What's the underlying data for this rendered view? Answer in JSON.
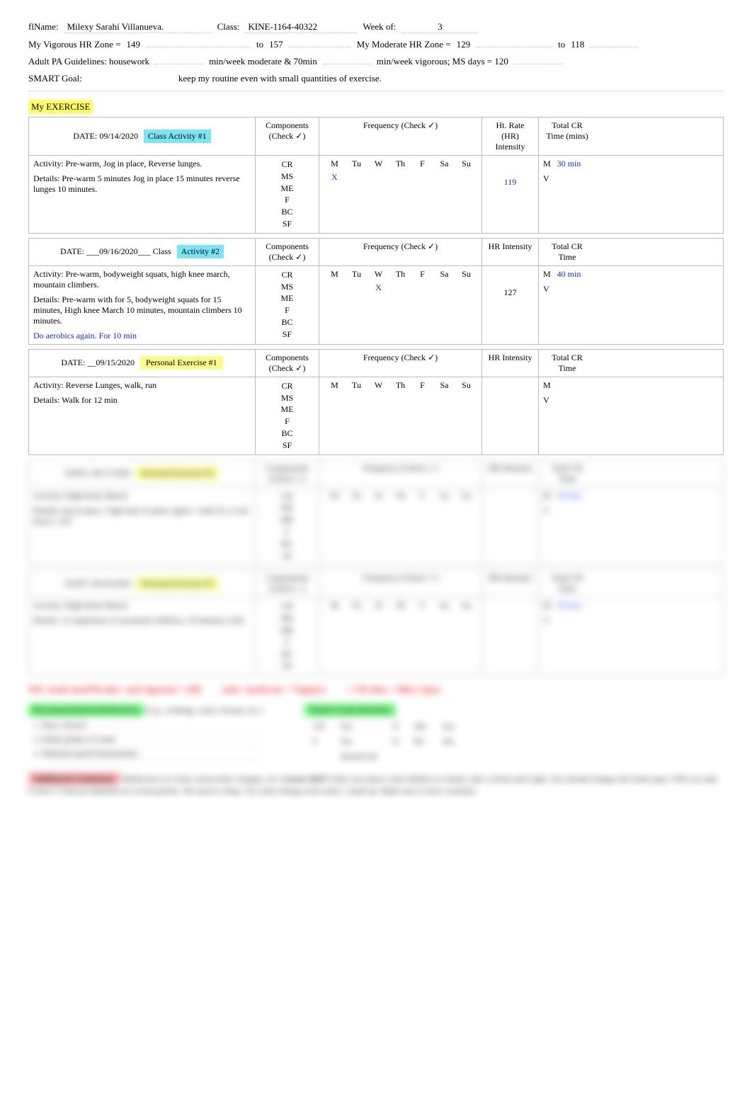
{
  "header": {
    "name_label": "flName:",
    "name_value": "Milexy Sarahí Villanueva.",
    "class_label": "Class:",
    "class_value": "KINE-1164-40322",
    "week_label": "Week of:",
    "week_value": "3",
    "vig_label": "My Vigorous  HR Zone =",
    "vig_lo": "149",
    "to": "to",
    "vig_hi": "157",
    "mod_label": "My Moderate  HR Zone =",
    "mod_lo": "129",
    "mod_hi": "118",
    "pa_label": "Adult PA Guidelines: housework",
    "pa_mid": "min/week moderate & 70min",
    "pa_end": "min/week vigorous; MS days = 120",
    "goal_label": "SMART Goal:",
    "goal_value": "keep my routine even with small quantities of exercise."
  },
  "section_title": "My EXERCISE",
  "col_headers": {
    "components": "Components (Check  ✓)",
    "frequency": "Frequency (Check  ✓)",
    "hr1": "Ht. Rate (HR) Intensity",
    "hr2": "HR Intensity",
    "crtime1": "Total CR Time (mins)",
    "crtime2": "Total CR Time"
  },
  "days": [
    "M",
    "Tu",
    "W",
    "Th",
    "F",
    "Sa",
    "Su"
  ],
  "components": [
    "CR",
    "MS",
    "ME",
    "F",
    "BC",
    "SF"
  ],
  "entries": [
    {
      "date_label": "DATE:  09/14/2020",
      "tag": "Class Activity   #1",
      "tag_style": "hl-cyan",
      "activity_label": "Activity:",
      "activity": "Pre-warm, Jog in place, Reverse lunges.",
      "details_label": "Details:",
      "details": "Pre-warm 5 minutes Jog in place 15 minutes reverse lunges 10 minutes.",
      "freq_mark_col": 0,
      "hr": "119",
      "hr_color": "blue",
      "m_val": "30 min",
      "v_val": "",
      "note": ""
    },
    {
      "date_label": "DATE: ___09/16/2020___ Class",
      "tag": "Activity  #2",
      "tag_style": "hl-cyan",
      "activity_label": "Activity:",
      "activity": "Pre-warm, bodyweight squats, high knee march, mountain climbers.",
      "details_label": "Details:",
      "details": "Pre-warm with for 5, bodyweight squats for 15 minutes, High knee March 10 minutes, mountain climbers 10 minutes.",
      "freq_mark_col": 2,
      "hr": "127",
      "hr_color": "black",
      "m_val": "40 min",
      "v_val": "",
      "note": "Do aerobics again. For 10 min"
    },
    {
      "date_label": "DATE: __09/15/2020",
      "tag": "Personal Exercise #1",
      "tag_style": "hl-yellow2",
      "activity_label": "Activity:",
      "activity": "Reverse Lunges, walk, run",
      "details_label": "Details:",
      "details": "Walk for 12 min",
      "freq_mark_col": -1,
      "hr": "",
      "hr_color": "black",
      "m_val": "",
      "v_val": "",
      "note": ""
    }
  ],
  "blur_entries": [
    {
      "date_label": "DATE:   09/17/2020",
      "tag": "Personal Exercise #2",
      "tag_style": "hl-yellow2",
      "activity": "Activity: High Knee March",
      "details": "Details: jog in place / high knee in place again / walk for a cool down / rest",
      "m_val": "30 min"
    },
    {
      "date_label": "DATE:   09/18/2020",
      "tag": "Personal Exercise #3",
      "tag_style": "hl-yellow2",
      "activity": "Activity: High Knee March",
      "details": "Details: 12 repetitions of mountain climbers, 10 minutes walk",
      "m_val": "30 min"
    }
  ],
  "summary": {
    "l1": "Wk. totals mod/30 min+ and vigorous+: (M)",
    "l2": "min+ moderate + Vig(qty)",
    "l3": "= CR time + Min's (qty)"
  },
  "recs": {
    "title": "Recommendations/Reflections",
    "sub": "(e.g., clothing, water, format, etc.)",
    "items": [
      "Rest, Stretch",
      "Drink plenty of water",
      "Maintain good form/posture"
    ]
  },
  "goals": {
    "title": "Week's Goals Reached:",
    "rows": [
      {
        "a": "CR",
        "b": "Yes",
        "c": "N",
        "d": "MS",
        "e": "Yes"
      },
      {
        "a": "F",
        "b": "Yes",
        "c": "N",
        "d": "BC",
        "e": "Yes"
      },
      {
        "a": "",
        "b": "SmartGoal",
        "c": "",
        "d": "",
        "e": ""
      }
    ]
  },
  "comments": {
    "title": "Additional Comments:",
    "sub": "(Reflection on week, noteworthy changes, etc.)",
    "bold": "Great Job!!!",
    "text": "After you dance with children as family, take a break and Light. You should change into better gear. Will you take it slow? I read an umbrella set of documents. We need to sleep. Try some sitting work styles / stand up. Make sure to have variation."
  }
}
